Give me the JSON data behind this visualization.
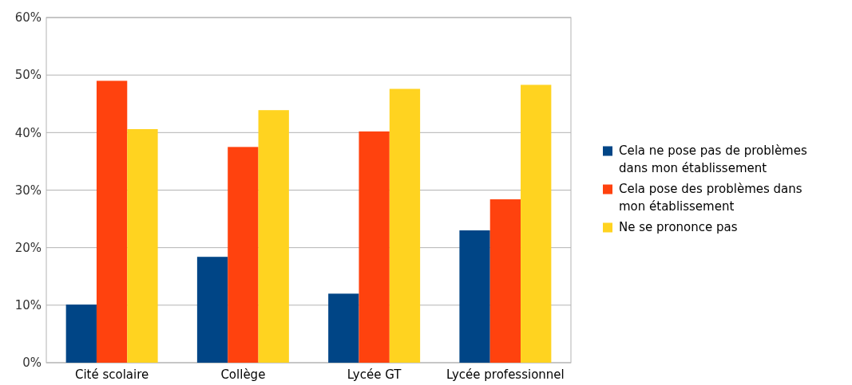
{
  "chart_data": {
    "type": "bar",
    "categories": [
      "Cité scolaire",
      "Collège",
      "Lycée GT",
      "Lycée professionnel"
    ],
    "series": [
      {
        "name": "Cela ne pose pas de problèmes dans mon établissement",
        "color": "#004586",
        "values": [
          10.1,
          18.4,
          12.0,
          23.0
        ]
      },
      {
        "name": "Cela pose des problèmes dans mon établissement",
        "color": "#ff420e",
        "values": [
          49.0,
          37.5,
          40.2,
          28.4
        ]
      },
      {
        "name": "Ne se prononce pas",
        "color": "#ffd320",
        "values": [
          40.6,
          43.9,
          47.6,
          48.3
        ]
      }
    ],
    "ylim": [
      0,
      60
    ],
    "yticks": [
      {
        "value": 0,
        "label": "0%"
      },
      {
        "value": 10,
        "label": "10%"
      },
      {
        "value": 20,
        "label": "20%"
      },
      {
        "value": 30,
        "label": "30%"
      },
      {
        "value": 40,
        "label": "40%"
      },
      {
        "value": 50,
        "label": "50%"
      },
      {
        "value": 60,
        "label": "60%"
      }
    ],
    "grid": "y",
    "legend": "right"
  }
}
